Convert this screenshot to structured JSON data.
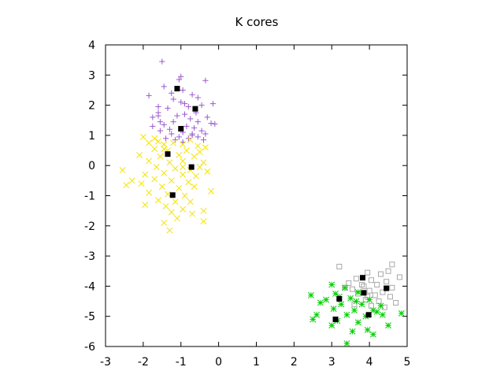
{
  "chart_data": {
    "type": "scatter",
    "title": "K cores",
    "xlabel": "",
    "ylabel": "",
    "xlim": [
      -3,
      5
    ],
    "ylim": [
      -6,
      4
    ],
    "x_ticks": [
      -3,
      -2,
      -1,
      0,
      1,
      2,
      3,
      4,
      5
    ],
    "y_ticks": [
      -6,
      -5,
      -4,
      -3,
      -2,
      -1,
      0,
      1,
      2,
      3,
      4
    ],
    "grid": false,
    "legend": "none",
    "series": [
      {
        "marker": "plus",
        "color": "#9b59d0",
        "points": [
          [
            -1.5,
            3.45
          ],
          [
            -1.0,
            2.95
          ],
          [
            -1.05,
            2.85
          ],
          [
            -0.35,
            2.82
          ],
          [
            -1.45,
            2.62
          ],
          [
            -1.85,
            2.32
          ],
          [
            -0.95,
            2.5
          ],
          [
            -0.7,
            2.35
          ],
          [
            -1.25,
            2.4
          ],
          [
            -0.15,
            2.05
          ],
          [
            -1.2,
            2.2
          ],
          [
            -1.0,
            2.1
          ],
          [
            -0.55,
            2.25
          ],
          [
            -0.45,
            2.0
          ],
          [
            -0.8,
            1.95
          ],
          [
            -1.6,
            1.95
          ],
          [
            -1.35,
            1.9
          ],
          [
            -0.6,
            1.75
          ],
          [
            -1.6,
            1.75
          ],
          [
            -1.1,
            1.65
          ],
          [
            -0.9,
            1.7
          ],
          [
            -1.75,
            1.6
          ],
          [
            -0.3,
            1.6
          ],
          [
            -0.75,
            1.55
          ],
          [
            -1.55,
            1.45
          ],
          [
            -1.2,
            1.45
          ],
          [
            -0.55,
            1.45
          ],
          [
            -0.2,
            1.4
          ],
          [
            -0.1,
            1.38
          ],
          [
            -1.75,
            1.3
          ],
          [
            -0.85,
            1.3
          ],
          [
            -0.65,
            1.25
          ],
          [
            -1.3,
            1.2
          ],
          [
            -1.55,
            1.15
          ],
          [
            -0.45,
            1.15
          ],
          [
            -0.95,
            1.1
          ],
          [
            -1.25,
            1.05
          ],
          [
            -0.7,
            1.05
          ],
          [
            -0.35,
            1.05
          ],
          [
            -1.05,
            0.95
          ],
          [
            -1.4,
            0.9
          ],
          [
            -0.8,
            0.9
          ],
          [
            -0.55,
            0.95
          ],
          [
            -1.15,
            0.85
          ],
          [
            -0.95,
            0.78
          ],
          [
            -1.6,
            1.65
          ],
          [
            -0.9,
            2.05
          ],
          [
            -0.7,
            1.0
          ],
          [
            -1.45,
            1.35
          ],
          [
            -0.4,
            0.85
          ]
        ]
      },
      {
        "marker": "cross",
        "color": "#f4e400",
        "points": [
          [
            -2.0,
            0.95
          ],
          [
            -1.85,
            0.75
          ],
          [
            -1.6,
            0.8
          ],
          [
            -1.45,
            0.7
          ],
          [
            -1.2,
            0.75
          ],
          [
            -0.95,
            0.7
          ],
          [
            -0.55,
            0.65
          ],
          [
            -1.7,
            0.55
          ],
          [
            -1.35,
            0.5
          ],
          [
            -0.85,
            0.5
          ],
          [
            -0.5,
            0.45
          ],
          [
            -2.1,
            0.35
          ],
          [
            -1.55,
            0.3
          ],
          [
            -1.05,
            0.35
          ],
          [
            -0.65,
            0.3
          ],
          [
            -1.85,
            0.15
          ],
          [
            -1.3,
            0.1
          ],
          [
            -0.95,
            0.15
          ],
          [
            -0.4,
            0.1
          ],
          [
            -2.55,
            -0.15
          ],
          [
            -1.65,
            -0.05
          ],
          [
            -1.15,
            -0.1
          ],
          [
            -0.75,
            -0.15
          ],
          [
            -0.3,
            -0.2
          ],
          [
            -1.95,
            -0.3
          ],
          [
            -1.45,
            -0.25
          ],
          [
            -0.95,
            -0.3
          ],
          [
            -0.6,
            -0.35
          ],
          [
            -2.3,
            -0.5
          ],
          [
            -1.7,
            -0.45
          ],
          [
            -1.25,
            -0.5
          ],
          [
            -0.8,
            -0.55
          ],
          [
            -2.45,
            -0.65
          ],
          [
            -2.05,
            -0.6
          ],
          [
            -1.5,
            -0.7
          ],
          [
            -1.05,
            -0.75
          ],
          [
            -0.65,
            -0.7
          ],
          [
            -0.2,
            -0.85
          ],
          [
            -1.85,
            -0.9
          ],
          [
            -1.35,
            -0.95
          ],
          [
            -0.9,
            -1.0
          ],
          [
            -1.6,
            -1.15
          ],
          [
            -1.15,
            -1.2
          ],
          [
            -0.75,
            -1.2
          ],
          [
            -1.95,
            -1.3
          ],
          [
            -1.4,
            -1.35
          ],
          [
            -0.95,
            -1.45
          ],
          [
            -0.4,
            -1.5
          ],
          [
            -1.25,
            -1.55
          ],
          [
            -0.7,
            -1.6
          ],
          [
            -1.1,
            -1.75
          ],
          [
            -0.4,
            -1.85
          ],
          [
            -1.45,
            -1.9
          ],
          [
            -1.3,
            -2.15
          ],
          [
            -0.95,
            -0.05
          ],
          [
            -0.5,
            -0.05
          ],
          [
            -1.45,
            0.55
          ],
          [
            -0.75,
            0.85
          ],
          [
            -1.7,
            0.9
          ],
          [
            -0.35,
            0.6
          ]
        ]
      },
      {
        "marker": "square",
        "color": "#a8a8a8",
        "points": [
          [
            3.2,
            -3.35
          ],
          [
            4.6,
            -3.28
          ],
          [
            3.95,
            -3.55
          ],
          [
            4.3,
            -3.6
          ],
          [
            4.8,
            -3.7
          ],
          [
            3.65,
            -3.75
          ],
          [
            4.05,
            -3.8
          ],
          [
            4.45,
            -3.85
          ],
          [
            3.45,
            -3.9
          ],
          [
            4.2,
            -3.95
          ],
          [
            3.85,
            -4.0
          ],
          [
            4.6,
            -4.05
          ],
          [
            3.55,
            -4.1
          ],
          [
            4.0,
            -4.15
          ],
          [
            4.35,
            -4.2
          ],
          [
            3.7,
            -4.25
          ],
          [
            4.15,
            -4.3
          ],
          [
            4.55,
            -4.35
          ],
          [
            3.9,
            -4.45
          ],
          [
            4.25,
            -4.5
          ],
          [
            4.7,
            -4.55
          ],
          [
            3.6,
            -4.6
          ],
          [
            4.05,
            -4.65
          ],
          [
            4.4,
            -4.7
          ],
          [
            3.8,
            -3.95
          ],
          [
            3.95,
            -4.35
          ],
          [
            4.5,
            -3.5
          ],
          [
            3.35,
            -4.05
          ]
        ]
      },
      {
        "marker": "star",
        "color": "#00d000",
        "points": [
          [
            3.0,
            -3.95
          ],
          [
            3.35,
            -4.05
          ],
          [
            2.45,
            -4.3
          ],
          [
            3.1,
            -4.25
          ],
          [
            3.7,
            -4.2
          ],
          [
            2.85,
            -4.45
          ],
          [
            3.5,
            -4.4
          ],
          [
            4.0,
            -4.45
          ],
          [
            2.7,
            -4.55
          ],
          [
            3.25,
            -4.6
          ],
          [
            3.8,
            -4.6
          ],
          [
            4.3,
            -4.65
          ],
          [
            3.05,
            -4.75
          ],
          [
            3.6,
            -4.8
          ],
          [
            4.1,
            -4.8
          ],
          [
            2.6,
            -4.95
          ],
          [
            3.4,
            -4.95
          ],
          [
            3.9,
            -5.0
          ],
          [
            4.35,
            -4.95
          ],
          [
            2.5,
            -5.1
          ],
          [
            3.15,
            -5.15
          ],
          [
            3.7,
            -5.2
          ],
          [
            4.5,
            -5.3
          ],
          [
            3.0,
            -5.3
          ],
          [
            4.85,
            -4.9
          ],
          [
            3.95,
            -5.45
          ],
          [
            4.1,
            -5.6
          ],
          [
            3.55,
            -5.5
          ],
          [
            3.4,
            -5.9
          ],
          [
            3.2,
            -4.35
          ],
          [
            3.65,
            -4.5
          ],
          [
            4.2,
            -4.85
          ]
        ]
      },
      {
        "marker": "filled-square",
        "color": "#000000",
        "points": [
          [
            -1.1,
            2.55
          ],
          [
            -0.62,
            1.88
          ],
          [
            -1.0,
            1.22
          ],
          [
            -1.35,
            0.38
          ],
          [
            -0.72,
            -0.05
          ],
          [
            -1.22,
            -0.98
          ],
          [
            3.82,
            -3.72
          ],
          [
            4.45,
            -4.07
          ],
          [
            3.85,
            -4.22
          ],
          [
            3.2,
            -4.42
          ],
          [
            3.98,
            -4.95
          ],
          [
            3.1,
            -5.1
          ]
        ]
      }
    ]
  }
}
